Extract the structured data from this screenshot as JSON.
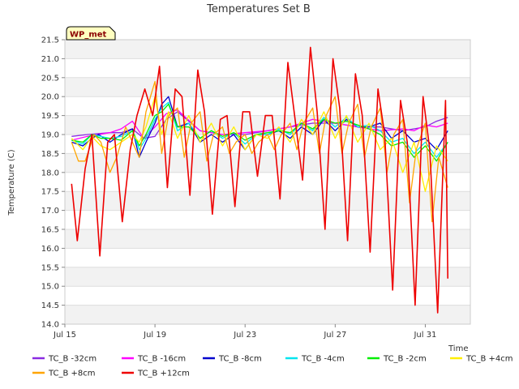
{
  "chart_data": {
    "type": "line",
    "title": "Temperatures Set B",
    "xlabel": "Time",
    "ylabel": "Temperature (C)",
    "badge": "WP_met",
    "xlim": [
      0,
      18
    ],
    "ylim": [
      14.0,
      21.5
    ],
    "yticks": [
      14.0,
      14.5,
      15.0,
      15.5,
      16.0,
      16.5,
      17.0,
      17.5,
      18.0,
      18.5,
      19.0,
      19.5,
      20.0,
      20.5,
      21.0,
      21.5
    ],
    "xticks": [
      {
        "pos": 0,
        "label": "Jul 15"
      },
      {
        "pos": 4,
        "label": "Jul 19"
      },
      {
        "pos": 8,
        "label": "Jul 23"
      },
      {
        "pos": 12,
        "label": "Jul 27"
      },
      {
        "pos": 16,
        "label": "Jul 31"
      }
    ],
    "grid": true,
    "legend_position": "bottom",
    "series": [
      {
        "name": "TC_B -32cm",
        "color": "#8a2be2",
        "x": [
          0.3,
          1,
          2,
          2.5,
          3,
          3.5,
          4,
          4.5,
          5,
          6,
          7,
          8,
          9,
          10,
          11,
          12,
          13,
          14,
          15,
          15.5,
          16,
          16.5,
          17
        ],
        "values": [
          18.95,
          19.0,
          19.05,
          19.05,
          19.15,
          18.9,
          18.95,
          19.4,
          19.6,
          19.1,
          19.0,
          19.0,
          19.1,
          19.2,
          19.3,
          19.3,
          19.2,
          19.2,
          19.1,
          19.15,
          19.2,
          19.35,
          19.45
        ]
      },
      {
        "name": "TC_B -16cm",
        "color": "#ff00ff",
        "x": [
          0.3,
          1,
          2,
          2.5,
          3,
          3.5,
          4,
          4.5,
          5,
          6,
          7,
          8,
          9,
          10,
          11,
          12,
          13,
          14,
          15,
          15.5,
          16,
          16.5,
          17
        ],
        "values": [
          18.85,
          18.95,
          19.05,
          19.15,
          19.35,
          18.9,
          19.2,
          19.55,
          19.65,
          19.1,
          19.0,
          19.05,
          19.1,
          19.2,
          19.4,
          19.3,
          19.2,
          19.1,
          19.15,
          19.1,
          19.25,
          19.2,
          19.3
        ]
      },
      {
        "name": "TC_B -8cm",
        "color": "#0000cd",
        "x": [
          0.3,
          0.8,
          1.2,
          1.5,
          2,
          2.5,
          3,
          3.3,
          3.6,
          4,
          4.3,
          4.6,
          5,
          5.5,
          6,
          6.5,
          7,
          7.5,
          8,
          8.5,
          9,
          9.5,
          10,
          10.5,
          11,
          11.5,
          12,
          12.5,
          13,
          13.5,
          14,
          14.5,
          15,
          15.5,
          16,
          16.5,
          17
        ],
        "values": [
          18.8,
          18.7,
          18.9,
          19.0,
          18.8,
          19.0,
          19.15,
          18.4,
          18.8,
          19.3,
          19.8,
          20.0,
          19.2,
          19.3,
          18.8,
          19.0,
          18.8,
          19.0,
          18.6,
          19.0,
          19.0,
          19.1,
          18.9,
          19.2,
          19.0,
          19.4,
          19.1,
          19.4,
          19.2,
          19.2,
          19.3,
          18.9,
          19.1,
          18.8,
          18.9,
          18.6,
          19.1
        ]
      },
      {
        "name": "TC_B -4cm",
        "color": "#00e5ee",
        "x": [
          0.3,
          0.8,
          1.2,
          1.6,
          2,
          2.5,
          3,
          3.3,
          3.6,
          4,
          4.3,
          4.6,
          5,
          5.5,
          6,
          6.5,
          7,
          7.5,
          8,
          8.5,
          9,
          9.5,
          10,
          10.5,
          11,
          11.5,
          12,
          12.5,
          13,
          13.5,
          14,
          14.5,
          15,
          15.5,
          16,
          16.5,
          17
        ],
        "values": [
          18.85,
          18.75,
          19.0,
          18.95,
          18.9,
          18.95,
          19.1,
          18.6,
          18.9,
          19.4,
          19.7,
          19.85,
          19.1,
          19.3,
          18.9,
          19.1,
          18.9,
          19.05,
          18.75,
          19.0,
          19.0,
          19.15,
          19.0,
          19.3,
          19.1,
          19.45,
          19.2,
          19.45,
          19.2,
          19.25,
          19.1,
          18.8,
          18.9,
          18.5,
          18.8,
          18.4,
          18.8
        ]
      },
      {
        "name": "TC_B -2cm",
        "color": "#00ee00",
        "x": [
          0.3,
          0.8,
          1.2,
          1.6,
          2,
          2.5,
          3,
          3.3,
          3.6,
          4,
          4.3,
          4.6,
          5,
          5.5,
          6,
          6.5,
          7,
          7.5,
          8,
          8.5,
          9,
          9.5,
          10,
          10.5,
          11,
          11.5,
          12,
          12.5,
          13,
          13.5,
          14,
          14.5,
          15,
          15.5,
          16,
          16.5,
          17
        ],
        "values": [
          18.85,
          18.8,
          19.0,
          18.9,
          18.9,
          18.85,
          19.1,
          18.7,
          19.0,
          19.5,
          19.6,
          19.8,
          19.2,
          19.2,
          18.9,
          19.1,
          18.95,
          19.05,
          18.85,
          19.0,
          19.05,
          19.1,
          19.05,
          19.3,
          19.15,
          19.4,
          19.3,
          19.35,
          19.25,
          19.15,
          19.0,
          18.7,
          18.8,
          18.4,
          18.7,
          18.3,
          18.8
        ]
      },
      {
        "name": "TC_B +4cm",
        "color": "#ffee00",
        "x": [
          0.3,
          0.8,
          1.2,
          1.6,
          2,
          2.5,
          3,
          3.3,
          3.6,
          4,
          4.3,
          4.6,
          5,
          5.5,
          6,
          6.5,
          7,
          7.5,
          8,
          8.5,
          9,
          9.5,
          10,
          10.5,
          11,
          11.5,
          12,
          12.5,
          13,
          13.5,
          14,
          14.5,
          15,
          15.5,
          16,
          16.5,
          17
        ],
        "values": [
          18.9,
          18.6,
          18.95,
          18.7,
          18.6,
          18.8,
          19.0,
          18.8,
          19.2,
          20.0,
          19.0,
          19.6,
          18.9,
          19.5,
          18.8,
          19.3,
          18.7,
          19.2,
          18.6,
          19.0,
          18.9,
          19.2,
          18.8,
          19.4,
          19.0,
          19.6,
          18.9,
          19.5,
          18.8,
          19.3,
          18.6,
          18.9,
          18.0,
          18.8,
          17.5,
          18.7,
          18.3
        ]
      },
      {
        "name": "TC_B +8cm",
        "color": "#ffa500",
        "x": [
          0.3,
          0.6,
          0.9,
          1.3,
          1.6,
          2,
          2.3,
          2.7,
          3,
          3.3,
          3.6,
          4,
          4.3,
          4.6,
          5,
          5.3,
          5.6,
          6,
          6.3,
          6.6,
          7,
          7.3,
          7.6,
          8,
          8.3,
          8.6,
          9,
          9.3,
          9.6,
          10,
          10.3,
          10.6,
          11,
          11.3,
          11.6,
          12,
          12.3,
          12.6,
          13,
          13.3,
          13.6,
          14,
          14.3,
          14.6,
          15,
          15.3,
          15.6,
          16,
          16.3,
          16.6,
          17
        ],
        "values": [
          18.8,
          18.3,
          18.3,
          19.0,
          18.8,
          18.0,
          18.4,
          19.2,
          18.8,
          18.4,
          19.6,
          20.4,
          18.5,
          19.5,
          19.7,
          18.4,
          19.3,
          19.6,
          18.3,
          19.0,
          19.2,
          18.5,
          18.8,
          19.0,
          18.5,
          18.8,
          19.0,
          18.6,
          19.0,
          19.3,
          18.6,
          19.3,
          19.7,
          18.5,
          19.5,
          20.0,
          18.5,
          19.3,
          19.8,
          18.4,
          19.2,
          19.7,
          18.0,
          19.0,
          19.4,
          17.2,
          18.6,
          19.3,
          16.7,
          18.4,
          17.6
        ]
      },
      {
        "name": "TC_B +12cm",
        "color": "#ee0000",
        "x": [
          0.3,
          0.55,
          0.9,
          1.2,
          1.55,
          1.9,
          2.2,
          2.55,
          2.9,
          3.2,
          3.55,
          3.9,
          4.2,
          4.55,
          4.9,
          5.2,
          5.55,
          5.9,
          6.2,
          6.55,
          6.9,
          7.2,
          7.55,
          7.9,
          8.2,
          8.55,
          8.9,
          9.2,
          9.55,
          9.9,
          10.2,
          10.55,
          10.9,
          11.2,
          11.55,
          11.9,
          12.2,
          12.55,
          12.9,
          13.2,
          13.55,
          13.9,
          14.2,
          14.55,
          14.9,
          15.2,
          15.55,
          15.9,
          16.2,
          16.55,
          16.9,
          17.0
        ],
        "values": [
          17.7,
          16.2,
          18.1,
          19.0,
          15.8,
          18.8,
          19.0,
          16.7,
          18.6,
          19.5,
          20.2,
          19.5,
          20.8,
          17.6,
          20.2,
          20.0,
          17.4,
          20.7,
          19.6,
          16.9,
          19.4,
          19.5,
          17.1,
          19.6,
          19.6,
          17.9,
          19.5,
          19.5,
          17.3,
          20.9,
          19.5,
          17.8,
          21.3,
          19.6,
          16.5,
          21.0,
          19.7,
          16.2,
          20.6,
          19.5,
          15.9,
          20.2,
          19.0,
          14.9,
          19.9,
          18.8,
          14.5,
          20.0,
          18.6,
          14.3,
          19.9,
          15.2
        ]
      }
    ]
  }
}
